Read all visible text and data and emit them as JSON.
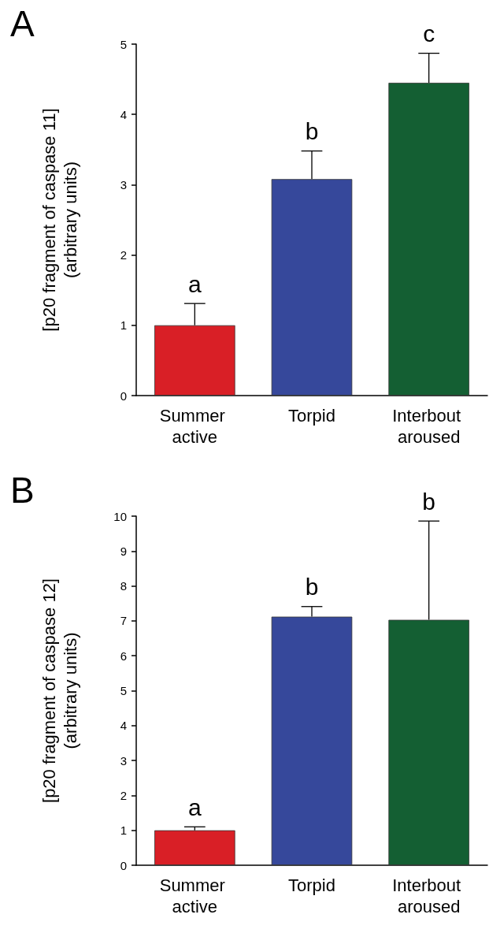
{
  "chart_data": [
    {
      "type": "bar",
      "title": "A",
      "ylabel": "[p20 fragment of caspase 11]\n(arbitrary units)",
      "categories": [
        "Summer active",
        "Torpid",
        "Interbout aroused"
      ],
      "values": [
        1.0,
        3.08,
        4.45
      ],
      "errors": [
        0.31,
        0.4,
        0.42
      ],
      "colors": [
        "#d91f26",
        "#36489b",
        "#145f33"
      ],
      "ylim": [
        0,
        5
      ],
      "yticks": [
        0,
        1,
        2,
        3,
        4,
        5
      ],
      "grid": false,
      "annotations": [
        {
          "text": "a",
          "x": "Summer active",
          "y": 1.31
        },
        {
          "text": "b",
          "x": "Torpid",
          "y": 3.48
        },
        {
          "text": "c",
          "x": "Interbout aroused",
          "y": 4.87
        }
      ]
    },
    {
      "type": "bar",
      "title": "B",
      "ylabel": "[p20 fragment of caspase 12]\n(arbitrary units)",
      "categories": [
        "Summer active",
        "Torpid",
        "Interbout aroused"
      ],
      "values": [
        1.0,
        7.12,
        7.03
      ],
      "errors": [
        0.1,
        0.29,
        2.83
      ],
      "colors": [
        "#d91f26",
        "#36489b",
        "#145f33"
      ],
      "ylim": [
        0,
        10
      ],
      "yticks": [
        0,
        1,
        2,
        3,
        4,
        5,
        6,
        7,
        8,
        9,
        10
      ],
      "grid": false,
      "annotations": [
        {
          "text": "a",
          "x": "Summer active",
          "y": 1.1
        },
        {
          "text": "b",
          "x": "Torpid",
          "y": 7.41
        },
        {
          "text": "b",
          "x": "Interbout aroused",
          "y": 9.86
        }
      ]
    }
  ]
}
